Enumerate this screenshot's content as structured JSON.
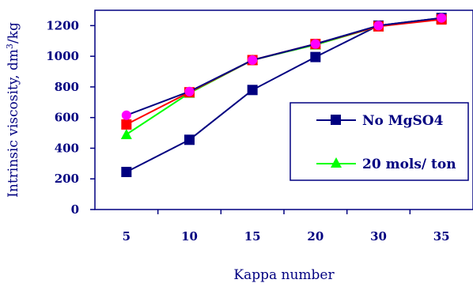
{
  "chart_data": {
    "type": "line",
    "xlabel": "Kappa number",
    "ylabel_main": "Intrinsic viscosity, dm",
    "ylabel_sup": "3",
    "ylabel_tail": "/kg",
    "categories": [
      "5",
      "10",
      "15",
      "20",
      "30",
      "35"
    ],
    "ylim": [
      0,
      1300
    ],
    "yticks": [
      0,
      200,
      400,
      600,
      800,
      1000,
      1200
    ],
    "grid": false,
    "legend_position": "right",
    "axis_color": "#000080",
    "series": [
      {
        "name": "No MgSO4",
        "color": "#000080",
        "marker": "square",
        "marker_color": "#000080",
        "in_legend": true,
        "values": [
          245,
          455,
          780,
          995,
          1200,
          1250
        ]
      },
      {
        "name": "20 mols/ ton",
        "color": "#00ff00",
        "marker": "triangle",
        "marker_color": "#00ff00",
        "in_legend": true,
        "values": [
          490,
          760,
          975,
          1075,
          1195,
          1245
        ]
      },
      {
        "name": "",
        "color": "#ff0000",
        "marker": "square",
        "marker_color": "#ff0000",
        "in_legend": false,
        "values": [
          555,
          765,
          975,
          1080,
          1195,
          1240
        ]
      },
      {
        "name": "",
        "color": "#000080",
        "marker": "circle",
        "marker_color": "#ff00ff",
        "in_legend": false,
        "values": [
          615,
          770,
          975,
          1080,
          1200,
          1250
        ]
      }
    ]
  }
}
